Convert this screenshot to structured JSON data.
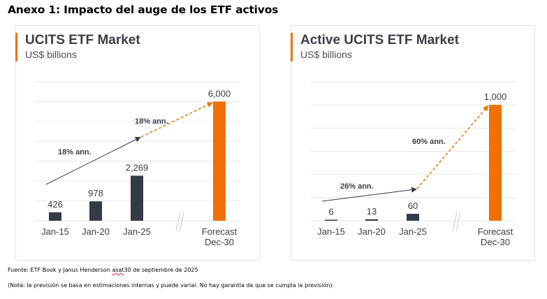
{
  "heading": "Anexo 1: Impacto del auge de los ETF activos",
  "colors": {
    "accent": "#F07000",
    "bar": "#363A45",
    "grid": "#e6e6e6",
    "text": "#3a3d45"
  },
  "chart_data": [
    {
      "type": "bar",
      "title": "UCITS ETF Market",
      "subtitle": "US$ billions",
      "categories": [
        "Jan-15",
        "Jan-20",
        "Jan-25",
        "Forecast\nDec-30"
      ],
      "values": [
        426,
        978,
        2269,
        6000
      ],
      "value_labels": [
        "426",
        "978",
        "2,269",
        "6,000"
      ],
      "forecast_index": 3,
      "ylim": [
        0,
        7000
      ],
      "grid_step": 1000,
      "grid": true,
      "axis_break_between": [
        2,
        3
      ],
      "annotations": [
        {
          "text": "18% ann.",
          "from": "Jan-15",
          "to": "Jan-25",
          "style": "solid-dark-arrow"
        },
        {
          "text": "18% ann.",
          "from": "Jan-25",
          "to": "Forecast Dec-30",
          "style": "dashed-orange-arrow"
        }
      ]
    },
    {
      "type": "bar",
      "title": "Active UCITS ETF Market",
      "subtitle": "US$ billions",
      "categories": [
        "Jan-15",
        "Jan-20",
        "Jan-25",
        "Forecast\nDec-30"
      ],
      "values": [
        6,
        13,
        60,
        1000
      ],
      "value_labels": [
        "6",
        "13",
        "60",
        "1,000"
      ],
      "forecast_index": 3,
      "ylim": [
        0,
        1200
      ],
      "grid_step": 200,
      "grid": true,
      "axis_break_between": [
        2,
        3
      ],
      "annotations": [
        {
          "text": "26% ann.",
          "from": "Jan-15",
          "to": "Jan-25",
          "style": "solid-dark-arrow"
        },
        {
          "text": "60% ann.",
          "from": "Jan-25",
          "to": "Forecast Dec-30",
          "style": "dashed-orange-arrow"
        }
      ]
    }
  ],
  "footnotes": {
    "source_prefix": "Fuente: ETF Book y Janus Henderson ",
    "source_squiggle": "asat",
    "source_suffix": "30 de septiembre de 2025",
    "note": "(Nota: la previsión se basa en estimaciones internas y puede variar. No hay garantía de que se cumpla la previsión)."
  }
}
